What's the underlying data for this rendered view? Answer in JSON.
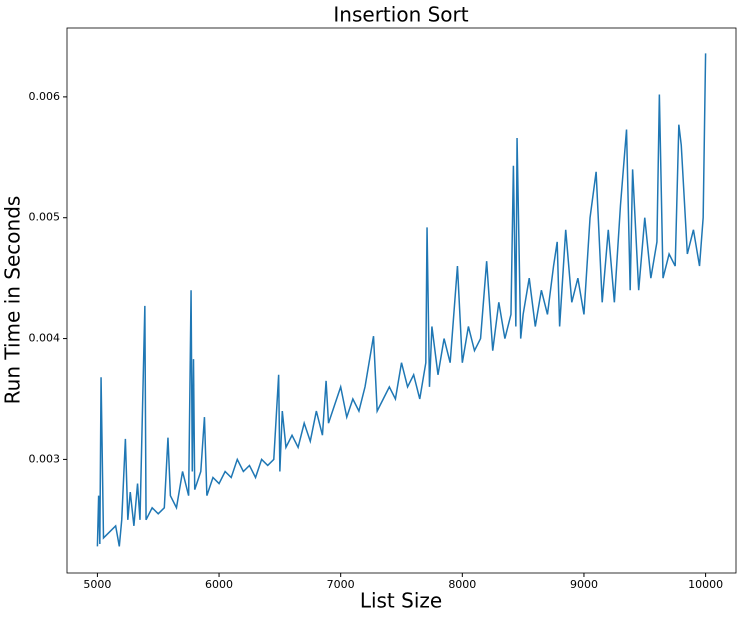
{
  "chart_data": {
    "type": "line",
    "title": "Insertion Sort",
    "x_label": "List Size",
    "y_label": "Run Time in Seconds",
    "color": "#1f77b4",
    "x": [
      5000,
      5010,
      5020,
      5030,
      5050,
      5100,
      5150,
      5180,
      5200,
      5230,
      5250,
      5270,
      5300,
      5330,
      5350,
      5390,
      5400,
      5450,
      5500,
      5550,
      5580,
      5600,
      5650,
      5700,
      5750,
      5770,
      5780,
      5790,
      5800,
      5850,
      5880,
      5900,
      5950,
      6000,
      6050,
      6100,
      6150,
      6200,
      6250,
      6300,
      6350,
      6400,
      6450,
      6490,
      6500,
      6520,
      6550,
      6600,
      6650,
      6700,
      6750,
      6800,
      6850,
      6880,
      6900,
      6950,
      7000,
      7050,
      7100,
      7150,
      7200,
      7270,
      7300,
      7350,
      7400,
      7450,
      7500,
      7550,
      7600,
      7650,
      7700,
      7710,
      7730,
      7750,
      7800,
      7850,
      7900,
      7960,
      8000,
      8050,
      8100,
      8150,
      8200,
      8250,
      8300,
      8350,
      8400,
      8420,
      8440,
      8450,
      8480,
      8500,
      8550,
      8600,
      8650,
      8700,
      8750,
      8780,
      8800,
      8850,
      8900,
      8950,
      9000,
      9050,
      9100,
      9150,
      9200,
      9250,
      9300,
      9350,
      9380,
      9400,
      9450,
      9500,
      9550,
      9600,
      9620,
      9650,
      9700,
      9750,
      9780,
      9800,
      9850,
      9900,
      9950,
      9980,
      10000
    ],
    "values": [
      0.00228,
      0.0027,
      0.0023,
      0.00368,
      0.00235,
      0.0024,
      0.00245,
      0.00228,
      0.0025,
      0.00317,
      0.0025,
      0.00273,
      0.00245,
      0.0028,
      0.0025,
      0.00427,
      0.0025,
      0.0026,
      0.00255,
      0.0026,
      0.00318,
      0.0027,
      0.0026,
      0.0029,
      0.0027,
      0.0044,
      0.0029,
      0.00383,
      0.00275,
      0.0029,
      0.00335,
      0.0027,
      0.00285,
      0.0028,
      0.0029,
      0.00285,
      0.003,
      0.0029,
      0.00295,
      0.00285,
      0.003,
      0.00295,
      0.003,
      0.0037,
      0.0029,
      0.0034,
      0.0031,
      0.0032,
      0.0031,
      0.0033,
      0.00315,
      0.0034,
      0.0032,
      0.00365,
      0.0033,
      0.00345,
      0.0036,
      0.00335,
      0.0035,
      0.0034,
      0.0036,
      0.00402,
      0.0034,
      0.0035,
      0.0036,
      0.0035,
      0.0038,
      0.0036,
      0.0037,
      0.0035,
      0.0038,
      0.00492,
      0.0036,
      0.0041,
      0.0037,
      0.004,
      0.0038,
      0.0046,
      0.0038,
      0.0041,
      0.0039,
      0.004,
      0.00464,
      0.0039,
      0.0043,
      0.004,
      0.0042,
      0.00543,
      0.0041,
      0.00566,
      0.004,
      0.0042,
      0.0045,
      0.0041,
      0.0044,
      0.0042,
      0.0046,
      0.0048,
      0.0041,
      0.0049,
      0.0043,
      0.0045,
      0.0042,
      0.005,
      0.00538,
      0.0043,
      0.0049,
      0.0043,
      0.0051,
      0.00573,
      0.0044,
      0.0054,
      0.0044,
      0.005,
      0.0045,
      0.0048,
      0.00602,
      0.0045,
      0.0047,
      0.0046,
      0.00577,
      0.0056,
      0.0047,
      0.0049,
      0.0046,
      0.005,
      0.00636
    ],
    "xlim": [
      4750,
      10250
    ],
    "ylim": [
      0.00206,
      0.00657
    ],
    "xticks": [
      5000,
      6000,
      7000,
      8000,
      9000,
      10000
    ],
    "yticks": [
      0.003,
      0.004,
      0.005,
      0.006
    ]
  }
}
